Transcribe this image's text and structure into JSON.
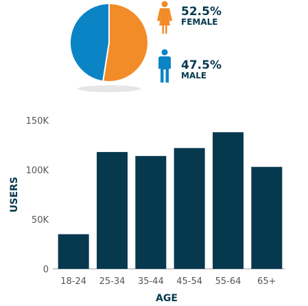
{
  "colors": {
    "female": "#f28c28",
    "male": "#0b84c6",
    "bar": "#06384e",
    "axis_text": "#555555",
    "shadow": "#e6e6e6"
  },
  "chart_data": [
    {
      "type": "pie",
      "slices": [
        {
          "label": "FEMALE",
          "value": 52.5,
          "value_label": "52.5%",
          "color": "#f28c28",
          "icon": "female-person-icon"
        },
        {
          "label": "MALE",
          "value": 47.5,
          "value_label": "47.5%",
          "color": "#0b84c6",
          "icon": "male-person-icon"
        }
      ]
    },
    {
      "type": "bar",
      "categories": [
        "18-24",
        "25-34",
        "35-44",
        "45-54",
        "55-64",
        "65+"
      ],
      "values": [
        35000,
        118000,
        114000,
        122000,
        138000,
        103000
      ],
      "xlabel": "AGE",
      "ylabel": "USERS",
      "ylim": [
        0,
        150000
      ],
      "yticks": [
        {
          "value": 0,
          "label": "0"
        },
        {
          "value": 50000,
          "label": "50K"
        },
        {
          "value": 100000,
          "label": "100K"
        },
        {
          "value": 150000,
          "label": "150K"
        }
      ],
      "grid": false
    }
  ]
}
